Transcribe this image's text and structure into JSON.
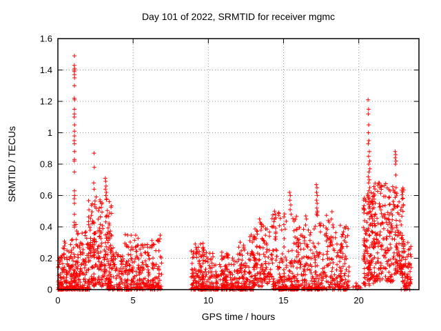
{
  "colors": {
    "marker": "#ff0000",
    "axis": "#000000",
    "grid": "#909090",
    "background": "#ffffff"
  },
  "chart_data": {
    "type": "scatter",
    "title": "Day 101 of 2022, SRMTID for receiver mgmc",
    "xlabel": "GPS time / hours",
    "ylabel": "SRMTID / TECUs",
    "xlim": [
      0,
      24
    ],
    "ylim": [
      0,
      1.6
    ],
    "grid": true,
    "legend": "none",
    "marker": "plus",
    "marker_color": "#ff0000",
    "xticks": [
      {
        "v": 0,
        "label": "0"
      },
      {
        "v": 5,
        "label": "5"
      },
      {
        "v": 10,
        "label": "10"
      },
      {
        "v": 15,
        "label": "15"
      },
      {
        "v": 20,
        "label": "20"
      }
    ],
    "yticks": [
      {
        "v": 0,
        "label": "0"
      },
      {
        "v": 0.2,
        "label": "0.2"
      },
      {
        "v": 0.4,
        "label": "0.4"
      },
      {
        "v": 0.6,
        "label": "0.6"
      },
      {
        "v": 0.8,
        "label": "0.8"
      },
      {
        "v": 1.0,
        "label": "1"
      },
      {
        "v": 1.2,
        "label": "1.2"
      },
      {
        "v": 1.4,
        "label": "1.4"
      },
      {
        "v": 1.6,
        "label": "1.6"
      }
    ],
    "spike_points": [
      [
        1.1,
        1.49
      ],
      [
        1.09,
        1.43
      ],
      [
        1.11,
        1.41
      ],
      [
        1.1,
        1.4
      ],
      [
        1.09,
        1.39
      ],
      [
        1.1,
        1.37
      ],
      [
        1.11,
        1.35
      ],
      [
        1.1,
        1.3
      ],
      [
        1.09,
        1.22
      ],
      [
        1.11,
        1.21
      ],
      [
        1.1,
        1.15
      ],
      [
        1.1,
        1.12
      ],
      [
        1.09,
        1.1
      ],
      [
        1.11,
        1.05
      ],
      [
        1.1,
        1.01
      ],
      [
        1.1,
        0.98
      ],
      [
        1.09,
        0.95
      ],
      [
        1.1,
        0.93
      ],
      [
        1.11,
        0.88
      ],
      [
        1.1,
        0.83
      ],
      [
        1.09,
        0.82
      ],
      [
        1.1,
        0.75
      ],
      [
        1.1,
        0.63
      ],
      [
        1.11,
        0.6
      ],
      [
        1.09,
        0.58
      ],
      [
        1.1,
        0.55
      ],
      [
        1.1,
        0.48
      ],
      [
        1.09,
        0.43
      ],
      [
        2.4,
        0.87
      ],
      [
        2.42,
        0.78
      ],
      [
        2.38,
        0.68
      ],
      [
        2.41,
        0.64
      ],
      [
        3.15,
        0.71
      ],
      [
        3.18,
        0.69
      ],
      [
        3.2,
        0.66
      ],
      [
        3.16,
        0.64
      ],
      [
        3.22,
        0.62
      ],
      [
        3.19,
        0.6
      ],
      [
        3.24,
        0.58
      ],
      [
        13.4,
        0.45
      ],
      [
        13.45,
        0.43
      ],
      [
        13.5,
        0.42
      ],
      [
        13.55,
        0.4
      ],
      [
        14.4,
        0.5
      ],
      [
        14.45,
        0.48
      ],
      [
        14.42,
        0.45
      ],
      [
        15.4,
        0.62
      ],
      [
        15.45,
        0.6
      ],
      [
        15.42,
        0.57
      ],
      [
        15.48,
        0.54
      ],
      [
        15.44,
        0.51
      ],
      [
        15.5,
        0.48
      ],
      [
        16.48,
        0.47
      ],
      [
        16.52,
        0.45
      ],
      [
        17.18,
        0.67
      ],
      [
        17.22,
        0.65
      ],
      [
        17.2,
        0.62
      ],
      [
        17.24,
        0.6
      ],
      [
        17.19,
        0.57
      ],
      [
        17.23,
        0.55
      ],
      [
        17.21,
        0.52
      ],
      [
        17.25,
        0.5
      ],
      [
        17.2,
        0.48
      ],
      [
        20.62,
        1.21
      ],
      [
        20.65,
        1.15
      ],
      [
        20.63,
        1.12
      ],
      [
        20.66,
        1.05
      ],
      [
        20.64,
        1.0
      ],
      [
        20.67,
        0.95
      ],
      [
        20.63,
        0.93
      ],
      [
        20.7,
        0.88
      ],
      [
        20.65,
        0.85
      ],
      [
        20.72,
        0.82
      ],
      [
        20.66,
        0.8
      ],
      [
        20.74,
        0.77
      ],
      [
        20.68,
        0.75
      ],
      [
        20.63,
        0.72
      ],
      [
        20.7,
        0.7
      ],
      [
        20.65,
        0.68
      ],
      [
        20.73,
        0.65
      ],
      [
        20.67,
        0.63
      ],
      [
        20.62,
        0.6
      ],
      [
        20.71,
        0.58
      ],
      [
        20.66,
        0.55
      ],
      [
        20.69,
        0.52
      ],
      [
        22.42,
        0.88
      ],
      [
        22.45,
        0.86
      ],
      [
        22.43,
        0.84
      ],
      [
        22.47,
        0.82
      ],
      [
        22.44,
        0.8
      ],
      [
        22.46,
        0.73
      ],
      [
        22.48,
        0.65
      ],
      [
        22.43,
        0.62
      ]
    ],
    "clusters": [
      {
        "x0": 0.0,
        "x1": 1.05,
        "y0": 0.0,
        "y1": 0.32,
        "n": 150,
        "skew": 2.2
      },
      {
        "x0": 1.0,
        "x1": 1.35,
        "y0": 0.0,
        "y1": 0.45,
        "n": 60,
        "skew": 1.8
      },
      {
        "x0": 1.35,
        "x1": 2.1,
        "y0": 0.0,
        "y1": 0.38,
        "n": 90,
        "skew": 2.0
      },
      {
        "x0": 2.0,
        "x1": 2.9,
        "y0": 0.02,
        "y1": 0.62,
        "n": 130,
        "skew": 1.4
      },
      {
        "x0": 2.9,
        "x1": 3.6,
        "y0": 0.02,
        "y1": 0.58,
        "n": 95,
        "skew": 1.4
      },
      {
        "x0": 3.3,
        "x1": 3.55,
        "y0": 0.0,
        "y1": 0.07,
        "n": 25,
        "skew": 1.0
      },
      {
        "x0": 3.6,
        "x1": 4.35,
        "y0": 0.0,
        "y1": 0.28,
        "n": 70,
        "skew": 2.0
      },
      {
        "x0": 4.4,
        "x1": 5.35,
        "y0": 0.0,
        "y1": 0.36,
        "n": 110,
        "skew": 2.0
      },
      {
        "x0": 5.35,
        "x1": 6.1,
        "y0": 0.0,
        "y1": 0.3,
        "n": 80,
        "skew": 2.0
      },
      {
        "x0": 6.1,
        "x1": 6.9,
        "y0": 0.0,
        "y1": 0.35,
        "n": 80,
        "skew": 2.0
      },
      {
        "x0": 8.85,
        "x1": 9.7,
        "y0": 0.0,
        "y1": 0.3,
        "n": 110,
        "skew": 2.2
      },
      {
        "x0": 9.6,
        "x1": 12.0,
        "y0": 0.0,
        "y1": 0.24,
        "n": 260,
        "skew": 2.2
      },
      {
        "x0": 12.0,
        "x1": 13.1,
        "y0": 0.0,
        "y1": 0.35,
        "n": 120,
        "skew": 2.0
      },
      {
        "x0": 13.0,
        "x1": 14.1,
        "y0": 0.02,
        "y1": 0.42,
        "n": 110,
        "skew": 1.7
      },
      {
        "x0": 14.1,
        "x1": 15.2,
        "y0": 0.0,
        "y1": 0.5,
        "n": 100,
        "skew": 1.9
      },
      {
        "x0": 15.2,
        "x1": 16.2,
        "y0": 0.0,
        "y1": 0.47,
        "n": 90,
        "skew": 1.8
      },
      {
        "x0": 16.2,
        "x1": 17.1,
        "y0": 0.0,
        "y1": 0.42,
        "n": 90,
        "skew": 1.8
      },
      {
        "x0": 17.1,
        "x1": 18.3,
        "y0": 0.0,
        "y1": 0.5,
        "n": 120,
        "skew": 1.7
      },
      {
        "x0": 18.3,
        "x1": 19.35,
        "y0": 0.0,
        "y1": 0.42,
        "n": 110,
        "skew": 2.0
      },
      {
        "x0": 19.6,
        "x1": 20.15,
        "y0": 0.0,
        "y1": 0.05,
        "n": 8,
        "skew": 1.0
      },
      {
        "x0": 20.3,
        "x1": 21.1,
        "y0": 0.02,
        "y1": 0.62,
        "n": 150,
        "skew": 1.4
      },
      {
        "x0": 21.0,
        "x1": 22.3,
        "y0": 0.05,
        "y1": 0.68,
        "n": 170,
        "skew": 1.3
      },
      {
        "x0": 22.3,
        "x1": 23.0,
        "y0": 0.1,
        "y1": 0.65,
        "n": 100,
        "skew": 1.4
      },
      {
        "x0": 22.8,
        "x1": 23.5,
        "y0": 0.0,
        "y1": 0.3,
        "n": 70,
        "skew": 1.8
      }
    ],
    "zero_blocks": [
      [
        11.95,
        12.3
      ],
      [
        14.65,
        15.25
      ],
      [
        15.5,
        16.0
      ],
      [
        16.6,
        16.9
      ],
      [
        17.1,
        17.4
      ]
    ]
  }
}
